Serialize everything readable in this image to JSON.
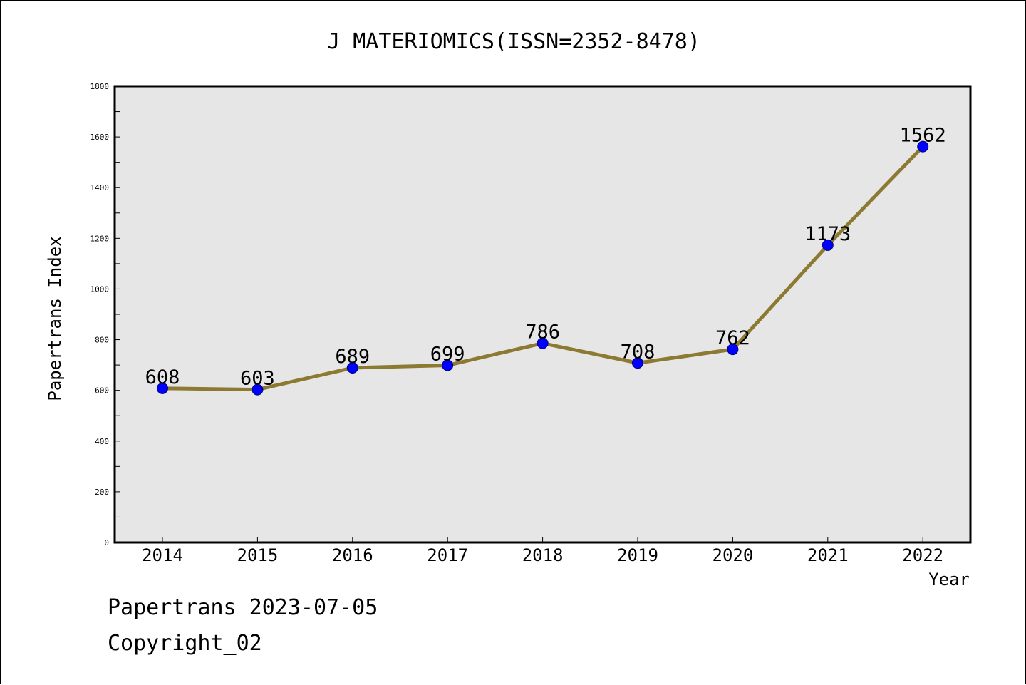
{
  "chart_data": {
    "type": "line",
    "title": "J MATERIOMICS(ISSN=2352-8478)",
    "xlabel": "Year",
    "ylabel": "Papertrans Index",
    "categories": [
      "2014",
      "2015",
      "2016",
      "2017",
      "2018",
      "2019",
      "2020",
      "2021",
      "2022"
    ],
    "series": [
      {
        "values": [
          608,
          603,
          689,
          699,
          786,
          708,
          762,
          1173,
          1562
        ]
      }
    ],
    "data_labels": [
      "608",
      "603",
      "689",
      "699",
      "786",
      "708",
      "762",
      "1173",
      "1562"
    ],
    "ylim": [
      0,
      1800
    ],
    "yticks": [
      0,
      200,
      400,
      600,
      800,
      1000,
      1200,
      1400,
      1600,
      1800
    ],
    "ytick_labels": [
      "0",
      "200",
      "400",
      "600",
      "800",
      "1000",
      "1200",
      "1400",
      "1600",
      "1800"
    ],
    "grid": false,
    "legend": "none",
    "colors": {
      "line": "#8c7a32",
      "marker_fill": "#0000ff",
      "marker_edge": "#000080",
      "plot_background": "#e6e6e6"
    }
  },
  "footer": {
    "line1": "Papertrans 2023-07-05",
    "line2": "Copyright_02"
  }
}
